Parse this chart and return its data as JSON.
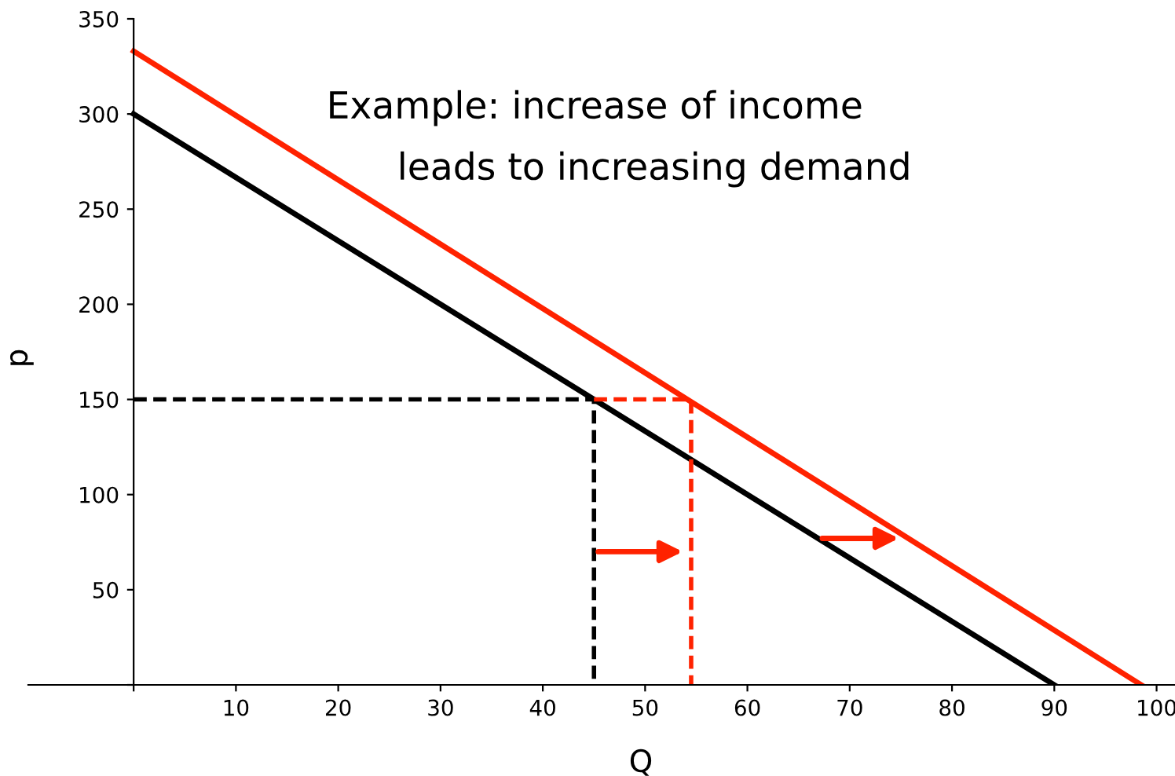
{
  "chart_data": {
    "type": "line",
    "xlabel": "Q",
    "ylabel": "p",
    "xlim": [
      -10.3,
      101.8
    ],
    "ylim": [
      0,
      350
    ],
    "xticks": [
      {
        "value": 0,
        "label": null
      },
      10,
      20,
      30,
      40,
      50,
      60,
      70,
      80,
      90,
      100
    ],
    "yticks": [
      {
        "value": 0,
        "label": null
      },
      50,
      100,
      150,
      200,
      250,
      300,
      350
    ],
    "grid": false,
    "legend": false,
    "marker": "none",
    "annotations": [
      "Example: increase of income\n      leads to increasing demand"
    ],
    "series": [
      {
        "color": "#000000",
        "x": [
          0,
          90
        ],
        "values": [
          300,
          0
        ],
        "line_style": "solid"
      },
      {
        "color": "#ff2200",
        "x": [
          0,
          98.5
        ],
        "values": [
          333,
          0
        ],
        "line_style": "solid"
      },
      {
        "color": "#000000",
        "x": [
          0,
          45,
          45
        ],
        "values": [
          150,
          150,
          0
        ],
        "line_style": "dashed"
      },
      {
        "color": "#ff2200",
        "x": [
          45,
          54.5,
          54.5
        ],
        "values": [
          150,
          150,
          0
        ],
        "line_style": "dashed"
      }
    ]
  }
}
